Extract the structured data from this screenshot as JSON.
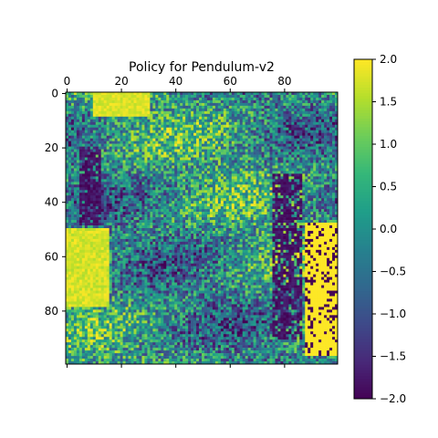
{
  "chart_data": {
    "type": "heatmap",
    "title": "Policy for Pendulum-v2",
    "xlabel": "",
    "ylabel": "",
    "grid_size": [
      100,
      100
    ],
    "x_ticks": [
      "0",
      "20",
      "40",
      "60",
      "80"
    ],
    "x_tick_values": [
      0,
      20,
      40,
      60,
      80
    ],
    "y_ticks": [
      "0",
      "20",
      "40",
      "60",
      "80"
    ],
    "y_tick_values": [
      0,
      20,
      40,
      60,
      80
    ],
    "x_tick_position": "top",
    "colorbar": {
      "min": -2.0,
      "max": 2.0,
      "ticks": [
        "2.0",
        "1.5",
        "1.0",
        "0.5",
        "0.0",
        "−0.5",
        "−1.0",
        "−1.5",
        "−2.0"
      ],
      "tick_values": [
        2.0,
        1.5,
        1.0,
        0.5,
        0.0,
        -0.5,
        -1.0,
        -1.5,
        -2.0
      ],
      "colormap": "viridis"
    },
    "grid": false,
    "value_summary": "Noisy action map with values in [-2, 2]; saturated yellow (+2) blocks on the left for rows ~50-78 and on the right for rows ~45-95, dark purple (-2) vertical streaks near columns 5-20 and 75-95, green/teal mixture elsewhere."
  }
}
